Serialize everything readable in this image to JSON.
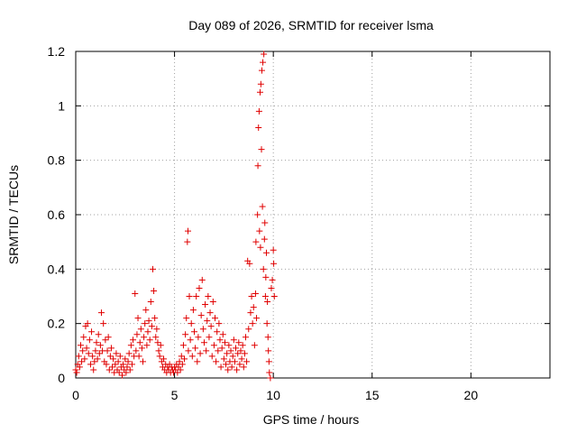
{
  "chart_data": {
    "type": "scatter",
    "title": "Day 089 of 2026, SRMTID for receiver lsma",
    "xlabel": "GPS time / hours",
    "ylabel": "SRMTID / TECUs",
    "xlim": [
      0,
      24
    ],
    "ylim": [
      0,
      1.2
    ],
    "xticks": [
      0,
      5,
      10,
      15,
      20
    ],
    "xtick_labels": [
      "0",
      "5",
      "10",
      "15",
      "20"
    ],
    "yticks": [
      0,
      0.2,
      0.4,
      0.6,
      0.8,
      1.0,
      1.2
    ],
    "ytick_labels": [
      "0",
      "0.2",
      "0.4",
      "0.6",
      "0.8",
      "1",
      "1.2"
    ],
    "grid": true,
    "marker": "+",
    "series": [
      {
        "name": "SRMTID",
        "color": "#e00000",
        "points": [
          [
            0.0,
            0.03
          ],
          [
            0.05,
            0.02
          ],
          [
            0.1,
            0.05
          ],
          [
            0.15,
            0.08
          ],
          [
            0.2,
            0.04
          ],
          [
            0.25,
            0.12
          ],
          [
            0.3,
            0.06
          ],
          [
            0.35,
            0.1
          ],
          [
            0.4,
            0.15
          ],
          [
            0.45,
            0.07
          ],
          [
            0.5,
            0.19
          ],
          [
            0.55,
            0.11
          ],
          [
            0.6,
            0.2
          ],
          [
            0.65,
            0.09
          ],
          [
            0.7,
            0.14
          ],
          [
            0.75,
            0.05
          ],
          [
            0.8,
            0.17
          ],
          [
            0.85,
            0.08
          ],
          [
            0.9,
            0.03
          ],
          [
            0.95,
            0.06
          ],
          [
            1.0,
            0.1
          ],
          [
            1.05,
            0.13
          ],
          [
            1.1,
            0.07
          ],
          [
            1.15,
            0.16
          ],
          [
            1.2,
            0.09
          ],
          [
            1.25,
            0.12
          ],
          [
            1.3,
            0.24
          ],
          [
            1.35,
            0.1
          ],
          [
            1.4,
            0.2
          ],
          [
            1.45,
            0.06
          ],
          [
            1.5,
            0.14
          ],
          [
            1.55,
            0.05
          ],
          [
            1.6,
            0.1
          ],
          [
            1.65,
            0.15
          ],
          [
            1.7,
            0.03
          ],
          [
            1.75,
            0.08
          ],
          [
            1.8,
            0.11
          ],
          [
            1.85,
            0.04
          ],
          [
            1.9,
            0.07
          ],
          [
            1.95,
            0.02
          ],
          [
            2.0,
            0.05
          ],
          [
            2.05,
            0.09
          ],
          [
            2.1,
            0.03
          ],
          [
            2.15,
            0.06
          ],
          [
            2.2,
            0.02
          ],
          [
            2.25,
            0.08
          ],
          [
            2.3,
            0.04
          ],
          [
            2.35,
            0.01
          ],
          [
            2.4,
            0.05
          ],
          [
            2.45,
            0.03
          ],
          [
            2.5,
            0.07
          ],
          [
            2.55,
            0.02
          ],
          [
            2.6,
            0.04
          ],
          [
            2.65,
            0.06
          ],
          [
            2.7,
            0.09
          ],
          [
            2.75,
            0.03
          ],
          [
            2.8,
            0.12
          ],
          [
            2.85,
            0.05
          ],
          [
            2.9,
            0.14
          ],
          [
            2.95,
            0.08
          ],
          [
            3.0,
            0.31
          ],
          [
            3.05,
            0.1
          ],
          [
            3.1,
            0.16
          ],
          [
            3.15,
            0.22
          ],
          [
            3.2,
            0.08
          ],
          [
            3.25,
            0.13
          ],
          [
            3.3,
            0.18
          ],
          [
            3.35,
            0.11
          ],
          [
            3.4,
            0.06
          ],
          [
            3.45,
            0.15
          ],
          [
            3.5,
            0.2
          ],
          [
            3.55,
            0.25
          ],
          [
            3.6,
            0.12
          ],
          [
            3.65,
            0.17
          ],
          [
            3.7,
            0.21
          ],
          [
            3.75,
            0.14
          ],
          [
            3.8,
            0.28
          ],
          [
            3.85,
            0.19
          ],
          [
            3.9,
            0.4
          ],
          [
            3.95,
            0.32
          ],
          [
            4.0,
            0.22
          ],
          [
            4.05,
            0.15
          ],
          [
            4.1,
            0.18
          ],
          [
            4.15,
            0.13
          ],
          [
            4.2,
            0.1
          ],
          [
            4.25,
            0.08
          ],
          [
            4.3,
            0.12
          ],
          [
            4.35,
            0.06
          ],
          [
            4.4,
            0.04
          ],
          [
            4.45,
            0.07
          ],
          [
            4.5,
            0.03
          ],
          [
            4.55,
            0.05
          ],
          [
            4.6,
            0.02
          ],
          [
            4.65,
            0.04
          ],
          [
            4.7,
            0.03
          ],
          [
            4.75,
            0.05
          ],
          [
            4.8,
            0.02
          ],
          [
            4.85,
            0.04
          ],
          [
            4.9,
            0.03
          ],
          [
            4.95,
            0.02
          ],
          [
            5.0,
            0.04
          ],
          [
            5.05,
            0.03
          ],
          [
            5.1,
            0.05
          ],
          [
            5.15,
            0.02
          ],
          [
            5.2,
            0.04
          ],
          [
            5.25,
            0.06
          ],
          [
            5.3,
            0.03
          ],
          [
            5.35,
            0.08
          ],
          [
            5.4,
            0.05
          ],
          [
            5.45,
            0.12
          ],
          [
            5.5,
            0.07
          ],
          [
            5.55,
            0.16
          ],
          [
            5.6,
            0.22
          ],
          [
            5.65,
            0.5
          ],
          [
            5.68,
            0.54
          ],
          [
            5.7,
            0.1
          ],
          [
            5.75,
            0.3
          ],
          [
            5.8,
            0.14
          ],
          [
            5.85,
            0.2
          ],
          [
            5.9,
            0.08
          ],
          [
            5.95,
            0.25
          ],
          [
            6.0,
            0.17
          ],
          [
            6.05,
            0.11
          ],
          [
            6.1,
            0.3
          ],
          [
            6.15,
            0.06
          ],
          [
            6.2,
            0.15
          ],
          [
            6.25,
            0.33
          ],
          [
            6.3,
            0.09
          ],
          [
            6.35,
            0.23
          ],
          [
            6.4,
            0.36
          ],
          [
            6.45,
            0.18
          ],
          [
            6.5,
            0.13
          ],
          [
            6.55,
            0.27
          ],
          [
            6.6,
            0.1
          ],
          [
            6.65,
            0.21
          ],
          [
            6.7,
            0.3
          ],
          [
            6.75,
            0.15
          ],
          [
            6.8,
            0.24
          ],
          [
            6.85,
            0.19
          ],
          [
            6.9,
            0.08
          ],
          [
            6.95,
            0.28
          ],
          [
            7.0,
            0.12
          ],
          [
            7.05,
            0.22
          ],
          [
            7.1,
            0.06
          ],
          [
            7.15,
            0.17
          ],
          [
            7.2,
            0.1
          ],
          [
            7.25,
            0.2
          ],
          [
            7.3,
            0.14
          ],
          [
            7.35,
            0.04
          ],
          [
            7.4,
            0.11
          ],
          [
            7.45,
            0.16
          ],
          [
            7.5,
            0.07
          ],
          [
            7.55,
            0.13
          ],
          [
            7.6,
            0.05
          ],
          [
            7.65,
            0.09
          ],
          [
            7.7,
            0.03
          ],
          [
            7.75,
            0.12
          ],
          [
            7.8,
            0.06
          ],
          [
            7.85,
            0.1
          ],
          [
            7.9,
            0.04
          ],
          [
            7.95,
            0.08
          ],
          [
            8.0,
            0.14
          ],
          [
            8.05,
            0.06
          ],
          [
            8.1,
            0.11
          ],
          [
            8.15,
            0.03
          ],
          [
            8.2,
            0.09
          ],
          [
            8.25,
            0.13
          ],
          [
            8.3,
            0.05
          ],
          [
            8.35,
            0.1
          ],
          [
            8.4,
            0.07
          ],
          [
            8.45,
            0.12
          ],
          [
            8.5,
            0.04
          ],
          [
            8.55,
            0.09
          ],
          [
            8.6,
            0.15
          ],
          [
            8.65,
            0.06
          ],
          [
            8.7,
            0.43
          ],
          [
            8.75,
            0.18
          ],
          [
            8.8,
            0.42
          ],
          [
            8.85,
            0.24
          ],
          [
            8.9,
            0.3
          ],
          [
            8.95,
            0.2
          ],
          [
            9.0,
            0.26
          ],
          [
            9.05,
            0.12
          ],
          [
            9.1,
            0.31
          ],
          [
            9.12,
            0.5
          ],
          [
            9.15,
            0.22
          ],
          [
            9.2,
            0.6
          ],
          [
            9.22,
            0.78
          ],
          [
            9.25,
            0.92
          ],
          [
            9.28,
            0.98
          ],
          [
            9.3,
            0.54
          ],
          [
            9.33,
            1.05
          ],
          [
            9.35,
            0.48
          ],
          [
            9.37,
            1.08
          ],
          [
            9.4,
            0.84
          ],
          [
            9.42,
            1.13
          ],
          [
            9.45,
            0.63
          ],
          [
            9.47,
            1.16
          ],
          [
            9.5,
            0.4
          ],
          [
            9.52,
            1.19
          ],
          [
            9.55,
            0.51
          ],
          [
            9.57,
            0.57
          ],
          [
            9.6,
            0.3
          ],
          [
            9.62,
            0.37
          ],
          [
            9.65,
            0.46
          ],
          [
            9.68,
            0.2
          ],
          [
            9.7,
            0.28
          ],
          [
            9.73,
            0.15
          ],
          [
            9.75,
            0.1
          ],
          [
            9.78,
            0.06
          ],
          [
            9.8,
            0.02
          ],
          [
            9.85,
            0.0
          ],
          [
            9.9,
            0.33
          ],
          [
            9.95,
            0.36
          ],
          [
            10.0,
            0.47
          ],
          [
            10.02,
            0.42
          ],
          [
            10.05,
            0.3
          ]
        ]
      }
    ]
  }
}
